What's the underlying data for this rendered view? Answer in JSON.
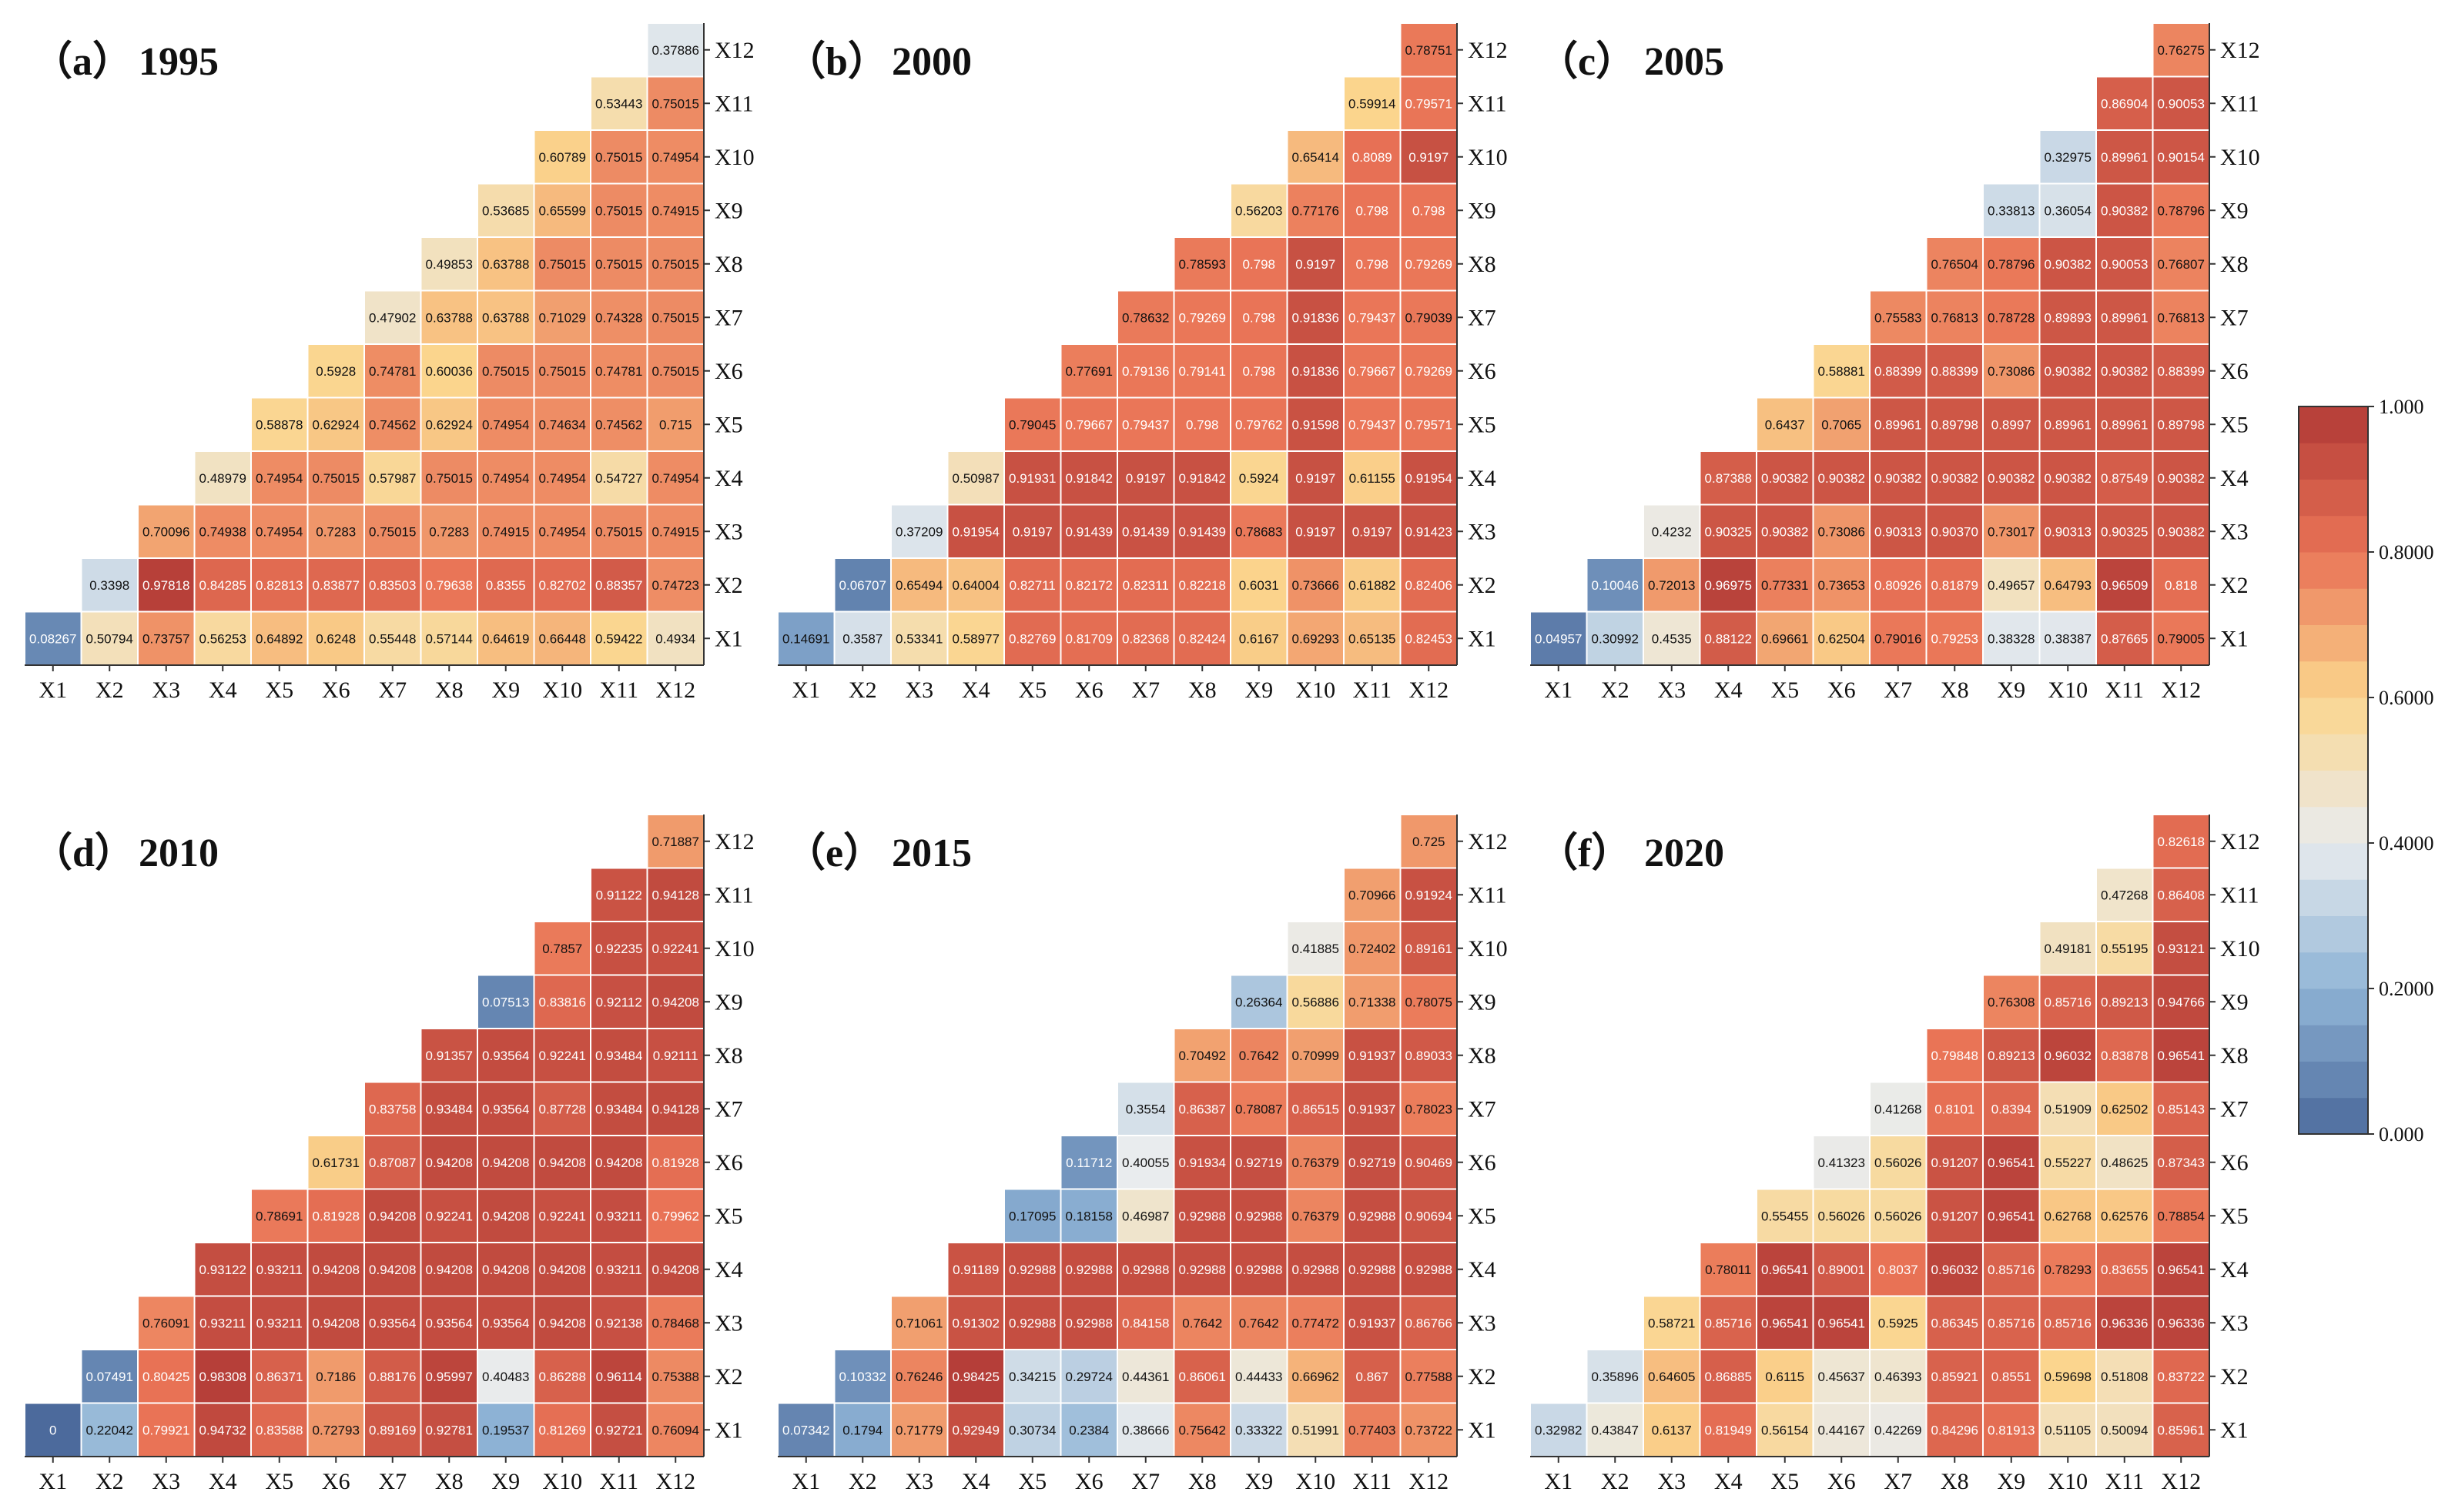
{
  "chart_data": {
    "type": "heatmap",
    "variables": [
      "X1",
      "X2",
      "X3",
      "X4",
      "X5",
      "X6",
      "X7",
      "X8",
      "X9",
      "X10",
      "X11",
      "X12"
    ],
    "colorbar": {
      "vmin": 0,
      "vmax": 1,
      "tick_labels": [
        "0.000",
        "0.2000",
        "0.4000",
        "0.6000",
        "0.8000",
        "1.000"
      ],
      "tick_values": [
        0,
        0.2,
        0.4,
        0.6,
        0.8,
        1.0
      ],
      "colors": [
        "#4c6a9c",
        "#8fb4d6",
        "#e9ecee",
        "#fbd58d",
        "#e97356",
        "#b13a36"
      ]
    },
    "panels": [
      {
        "label": "（a）",
        "year": "1995",
        "rows": [
          [
            "0.08267",
            "0.50794",
            "0.73757",
            "0.56253",
            "0.64892",
            "0.6248",
            "0.55448",
            "0.57144",
            "0.64619",
            "0.66448",
            "0.59422",
            "0.4934"
          ],
          [
            "0.3398",
            "0.97818",
            "0.84285",
            "0.82813",
            "0.83877",
            "0.83503",
            "0.79638",
            "0.8355",
            "0.82702",
            "0.88357",
            "0.74723"
          ],
          [
            "0.70096",
            "0.74938",
            "0.74954",
            "0.7283",
            "0.75015",
            "0.7283",
            "0.74915",
            "0.74954",
            "0.75015",
            "0.74915"
          ],
          [
            "0.48979",
            "0.74954",
            "0.75015",
            "0.57987",
            "0.75015",
            "0.74954",
            "0.74954",
            "0.54727",
            "0.74954"
          ],
          [
            "0.58878",
            "0.62924",
            "0.74562",
            "0.62924",
            "0.74954",
            "0.74634",
            "0.74562",
            "0.715"
          ],
          [
            "0.5928",
            "0.74781",
            "0.60036",
            "0.75015",
            "0.75015",
            "0.74781",
            "0.75015"
          ],
          [
            "0.47902",
            "0.63788",
            "0.63788",
            "0.71029",
            "0.74328",
            "0.75015"
          ],
          [
            "0.49853",
            "0.63788",
            "0.75015",
            "0.75015",
            "0.75015"
          ],
          [
            "0.53685",
            "0.65599",
            "0.75015",
            "0.74915"
          ],
          [
            "0.60789",
            "0.75015",
            "0.74954"
          ],
          [
            "0.53443",
            "0.75015"
          ],
          [
            "0.37886"
          ]
        ]
      },
      {
        "label": "（b）",
        "year": "2000",
        "rows": [
          [
            "0.14691",
            "0.3587",
            "0.53341",
            "0.58977",
            "0.82769",
            "0.81709",
            "0.82368",
            "0.82424",
            "0.6167",
            "0.69293",
            "0.65135",
            "0.82453"
          ],
          [
            "0.06707",
            "0.65494",
            "0.64004",
            "0.82711",
            "0.82172",
            "0.82311",
            "0.82218",
            "0.6031",
            "0.73666",
            "0.61882",
            "0.82406"
          ],
          [
            "0.37209",
            "0.91954",
            "0.9197",
            "0.91439",
            "0.91439",
            "0.91439",
            "0.78683",
            "0.9197",
            "0.9197",
            "0.91423"
          ],
          [
            "0.50987",
            "0.91931",
            "0.91842",
            "0.9197",
            "0.91842",
            "0.5924",
            "0.9197",
            "0.61155",
            "0.91954"
          ],
          [
            "0.79045",
            "0.79667",
            "0.79437",
            "0.798",
            "0.79762",
            "0.91598",
            "0.79437",
            "0.79571"
          ],
          [
            "0.77691",
            "0.79136",
            "0.79141",
            "0.798",
            "0.91836",
            "0.79667",
            "0.79269"
          ],
          [
            "0.78632",
            "0.79269",
            "0.798",
            "0.91836",
            "0.79437",
            "0.79039"
          ],
          [
            "0.78593",
            "0.798",
            "0.9197",
            "0.798",
            "0.79269"
          ],
          [
            "0.56203",
            "0.77176",
            "0.798",
            "0.798"
          ],
          [
            "0.65414",
            "0.8089",
            "0.9197"
          ],
          [
            "0.59914",
            "0.79571"
          ],
          [
            "0.78751"
          ]
        ]
      },
      {
        "label": "（c）",
        "year": "2005",
        "rows": [
          [
            "0.04957",
            "0.30992",
            "0.4535",
            "0.88122",
            "0.69661",
            "0.62504",
            "0.79016",
            "0.79253",
            "0.38328",
            "0.38387",
            "0.87665",
            "0.79005"
          ],
          [
            "0.10046",
            "0.72013",
            "0.96975",
            "0.77331",
            "0.73653",
            "0.80926",
            "0.81879",
            "0.49657",
            "0.64793",
            "0.96509",
            "0.818"
          ],
          [
            "0.4232",
            "0.90325",
            "0.90382",
            "0.73086",
            "0.90313",
            "0.90370",
            "0.73017",
            "0.90313",
            "0.90325",
            "0.90382"
          ],
          [
            "0.87388",
            "0.90382",
            "0.90382",
            "0.90382",
            "0.90382",
            "0.90382",
            "0.90382",
            "0.87549",
            "0.90382"
          ],
          [
            "0.6437",
            "0.7065",
            "0.89961",
            "0.89798",
            "0.8997",
            "0.89961",
            "0.89961",
            "0.89798"
          ],
          [
            "0.58881",
            "0.88399",
            "0.88399",
            "0.73086",
            "0.90382",
            "0.90382",
            "0.88399"
          ],
          [
            "0.75583",
            "0.76813",
            "0.78728",
            "0.89893",
            "0.89961",
            "0.76813"
          ],
          [
            "0.76504",
            "0.78796",
            "0.90382",
            "0.90053",
            "0.76807"
          ],
          [
            "0.33813",
            "0.36054",
            "0.90382",
            "0.78796"
          ],
          [
            "0.32975",
            "0.89961",
            "0.90154"
          ],
          [
            "0.86904",
            "0.90053"
          ],
          [
            "0.76275"
          ]
        ]
      },
      {
        "label": "（d）",
        "year": "2010",
        "rows": [
          [
            "0",
            "0.22042",
            "0.79921",
            "0.94732",
            "0.83588",
            "0.72793",
            "0.89169",
            "0.92781",
            "0.19537",
            "0.81269",
            "0.92721",
            "0.76094"
          ],
          [
            "0.07491",
            "0.80425",
            "0.98308",
            "0.86371",
            "0.7186",
            "0.88176",
            "0.95997",
            "0.40483",
            "0.86288",
            "0.96114",
            "0.75388"
          ],
          [
            "0.76091",
            "0.93211",
            "0.93211",
            "0.94208",
            "0.93564",
            "0.93564",
            "0.93564",
            "0.94208",
            "0.92138",
            "0.78468"
          ],
          [
            "0.93122",
            "0.93211",
            "0.94208",
            "0.94208",
            "0.94208",
            "0.94208",
            "0.94208",
            "0.93211",
            "0.94208"
          ],
          [
            "0.78691",
            "0.81928",
            "0.94208",
            "0.92241",
            "0.94208",
            "0.92241",
            "0.93211",
            "0.79962"
          ],
          [
            "0.61731",
            "0.87087",
            "0.94208",
            "0.94208",
            "0.94208",
            "0.94208",
            "0.81928"
          ],
          [
            "0.83758",
            "0.93484",
            "0.93564",
            "0.87728",
            "0.93484",
            "0.94128"
          ],
          [
            "0.91357",
            "0.93564",
            "0.92241",
            "0.93484",
            "0.92111"
          ],
          [
            "0.07513",
            "0.83816",
            "0.92112",
            "0.94208"
          ],
          [
            "0.7857",
            "0.92235",
            "0.92241"
          ],
          [
            "0.91122",
            "0.94128"
          ],
          [
            "0.71887"
          ]
        ]
      },
      {
        "label": "（e）",
        "year": "2015",
        "rows": [
          [
            "0.07342",
            "0.1794",
            "0.71779",
            "0.92949",
            "0.30734",
            "0.2384",
            "0.38666",
            "0.75642",
            "0.33322",
            "0.51991",
            "0.77403",
            "0.73722"
          ],
          [
            "0.10332",
            "0.76246",
            "0.98425",
            "0.34215",
            "0.29724",
            "0.44361",
            "0.86061",
            "0.44433",
            "0.66962",
            "0.867",
            "0.77588"
          ],
          [
            "0.71061",
            "0.91302",
            "0.92988",
            "0.92988",
            "0.84158",
            "0.7642",
            "0.7642",
            "0.77472",
            "0.91937",
            "0.86766"
          ],
          [
            "0.91189",
            "0.92988",
            "0.92988",
            "0.92988",
            "0.92988",
            "0.92988",
            "0.92988",
            "0.92988",
            "0.92988"
          ],
          [
            "0.17095",
            "0.18158",
            "0.46987",
            "0.92988",
            "0.92988",
            "0.76379",
            "0.92988",
            "0.90694"
          ],
          [
            "0.11712",
            "0.40055",
            "0.91934",
            "0.92719",
            "0.76379",
            "0.92719",
            "0.90469"
          ],
          [
            "0.3554",
            "0.86387",
            "0.78087",
            "0.86515",
            "0.91937",
            "0.78023"
          ],
          [
            "0.70492",
            "0.7642",
            "0.70999",
            "0.91937",
            "0.89033"
          ],
          [
            "0.26364",
            "0.56886",
            "0.71338",
            "0.78075"
          ],
          [
            "0.41885",
            "0.72402",
            "0.89161"
          ],
          [
            "0.70966",
            "0.91924"
          ],
          [
            "0.725"
          ]
        ]
      },
      {
        "label": "（f）",
        "year": "2020",
        "rows": [
          [
            "0.32982",
            "0.43847",
            "0.6137",
            "0.81949",
            "0.56154",
            "0.44167",
            "0.42269",
            "0.84296",
            "0.81913",
            "0.51105",
            "0.50094",
            "0.85961"
          ],
          [
            "0.35896",
            "0.64605",
            "0.86885",
            "0.6115",
            "0.45637",
            "0.46393",
            "0.85921",
            "0.8551",
            "0.59698",
            "0.51808",
            "0.83722"
          ],
          [
            "0.58721",
            "0.85716",
            "0.96541",
            "0.96541",
            "0.5925",
            "0.86345",
            "0.85716",
            "0.85716",
            "0.96336",
            "0.96336"
          ],
          [
            "0.78011",
            "0.96541",
            "0.89001",
            "0.8037",
            "0.96032",
            "0.85716",
            "0.78293",
            "0.83655",
            "0.96541"
          ],
          [
            "0.55455",
            "0.56026",
            "0.56026",
            "0.91207",
            "0.96541",
            "0.62768",
            "0.62576",
            "0.78854"
          ],
          [
            "0.41323",
            "0.56026",
            "0.91207",
            "0.96541",
            "0.55227",
            "0.48625",
            "0.87343"
          ],
          [
            "0.41268",
            "0.8101",
            "0.8394",
            "0.51909",
            "0.62502",
            "0.85143"
          ],
          [
            "0.79848",
            "0.89213",
            "0.96032",
            "0.83878",
            "0.96541"
          ],
          [
            "0.76308",
            "0.85716",
            "0.89213",
            "0.94766"
          ],
          [
            "0.49181",
            "0.55195",
            "0.93121"
          ],
          [
            "0.47268",
            "0.86408"
          ],
          [
            "0.82618"
          ]
        ]
      }
    ]
  }
}
